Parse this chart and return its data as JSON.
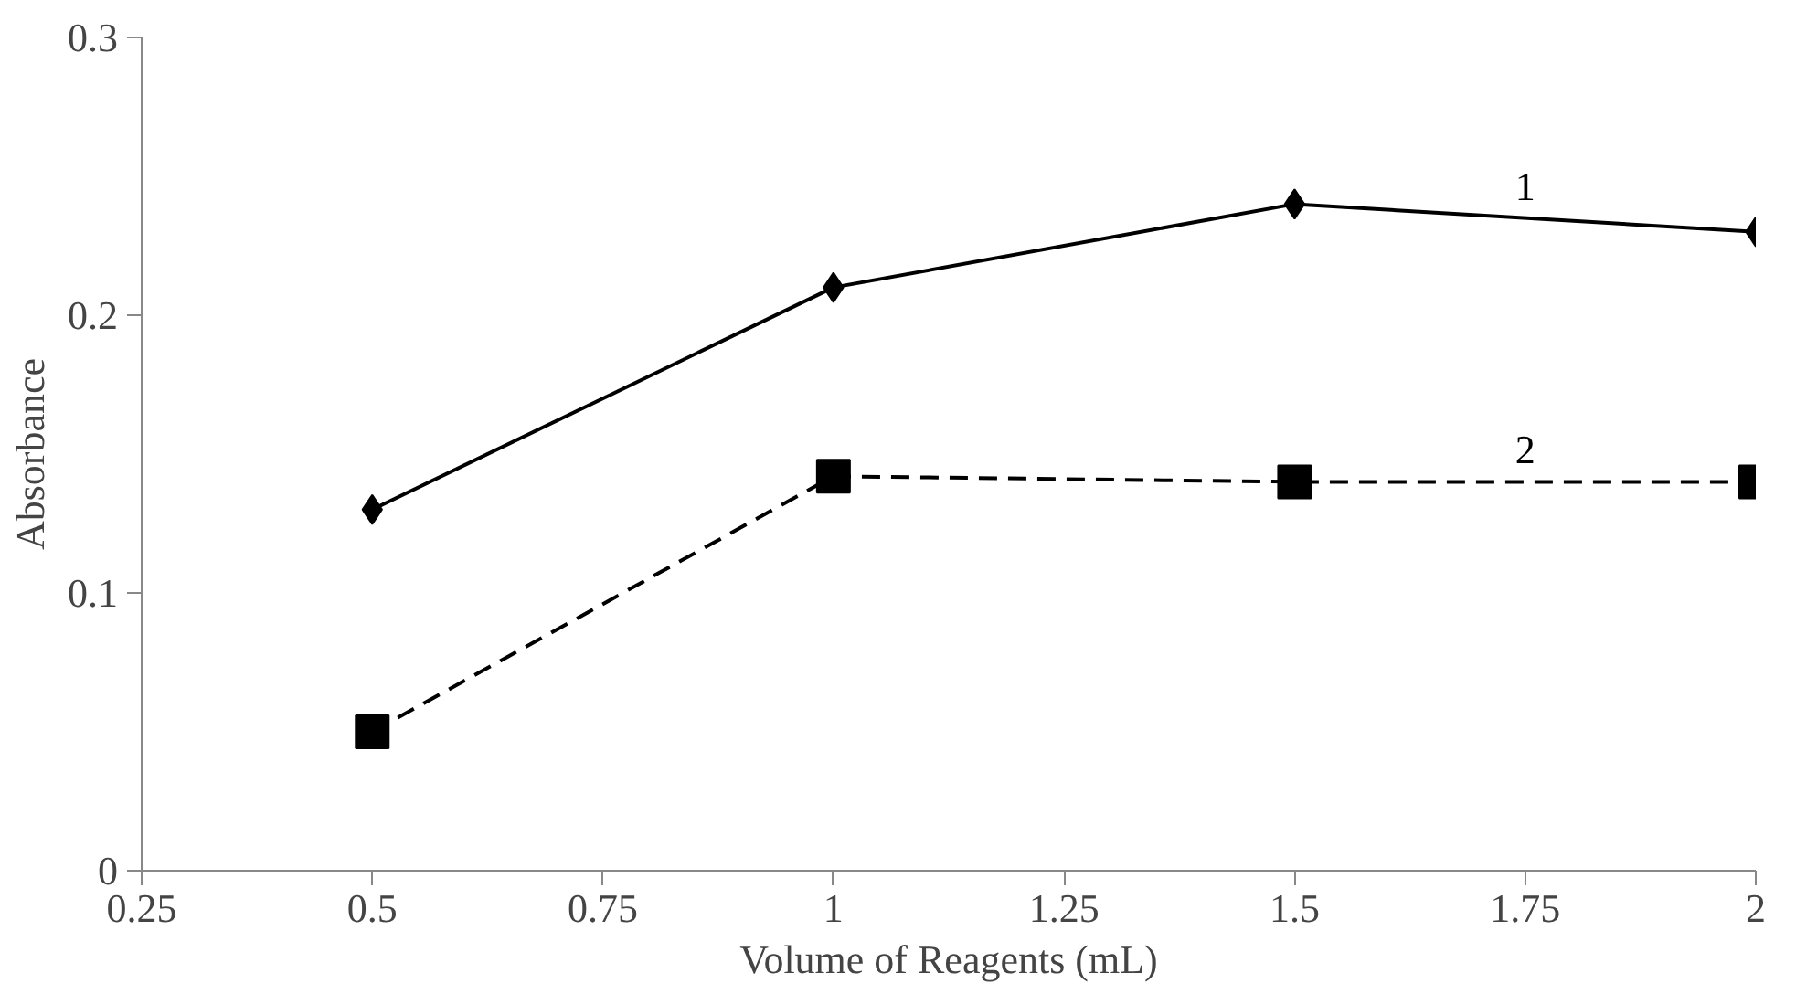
{
  "chart_data": {
    "type": "line",
    "xlabel": "Volume of Reagents (mL)",
    "ylabel": "Absorbance",
    "x": [
      0.5,
      1,
      1.5,
      2
    ],
    "series": [
      {
        "name": "1",
        "color": "#000000",
        "values": [
          0.13,
          0.21,
          0.24,
          0.23
        ],
        "marker": "diamond",
        "line_style": "solid"
      },
      {
        "name": "2",
        "color": "#000000",
        "values": [
          0.05,
          0.142,
          0.14,
          0.14
        ],
        "marker": "square",
        "line_style": "dashed"
      }
    ],
    "xlim": [
      0.25,
      2
    ],
    "xticks": [
      0.25,
      0.5,
      0.75,
      1,
      1.25,
      1.5,
      1.75,
      2
    ],
    "ylim": [
      0,
      0.3
    ],
    "yticks": [
      0,
      0.1,
      0.2,
      0.3
    ],
    "grid": false
  }
}
